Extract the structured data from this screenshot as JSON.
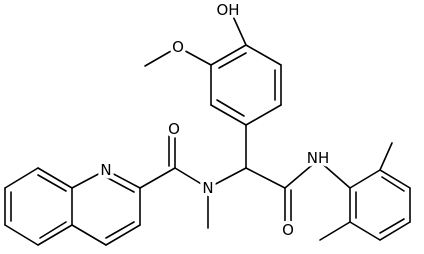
{
  "atoms": {
    "hydroxyl": "OH",
    "methoxy_oxygen": "O",
    "left_carbonyl_oxygen": "O",
    "quinoline_nitrogen": "N",
    "amide_nitrogen": "N",
    "right_carbonyl_oxygen": "O",
    "anilide_nitrogen": "NH"
  }
}
